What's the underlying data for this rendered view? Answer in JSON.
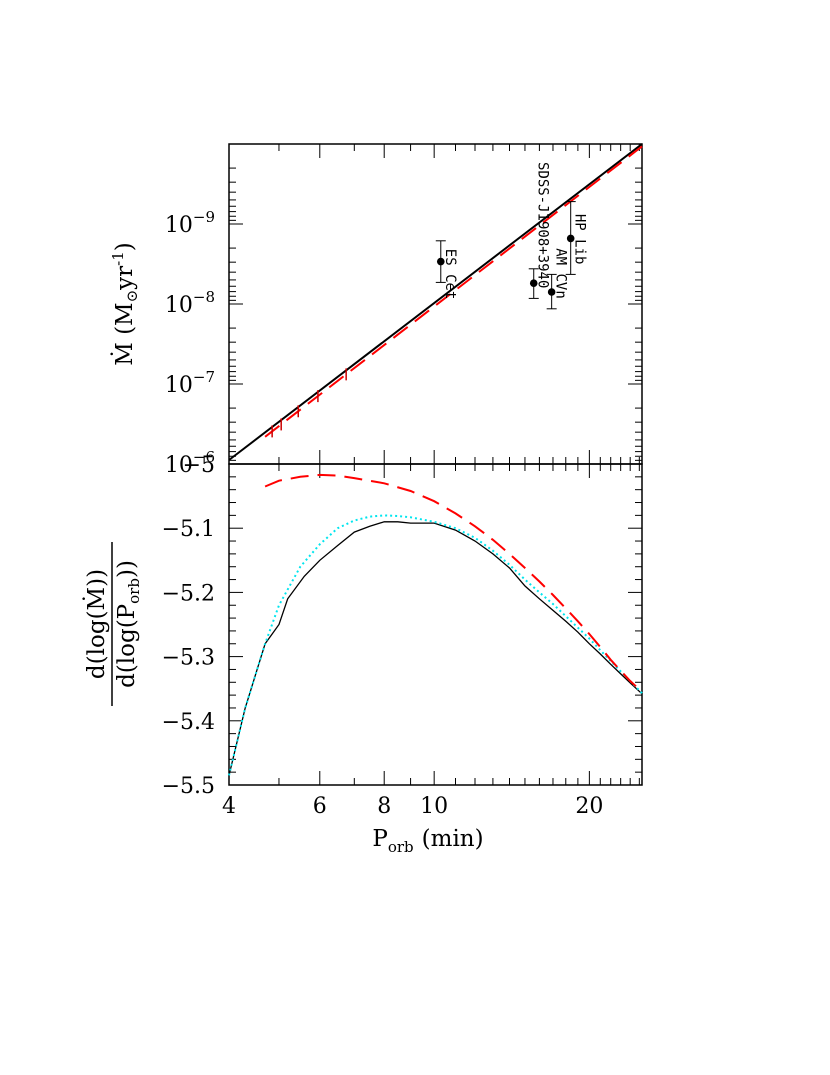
{
  "chart_data": [
    {
      "panel": "top",
      "type": "line",
      "xscale": "log",
      "yscale": "log",
      "xlim": [
        4,
        25.3
      ],
      "ylim_log10": [
        -10.0,
        -6.0
      ],
      "ytick_labels": [
        {
          "base": "10",
          "exp": "−6",
          "log10": -6
        },
        {
          "base": "10",
          "exp": "−7",
          "log10": -7
        },
        {
          "base": "10",
          "exp": "−8",
          "log10": -8
        },
        {
          "base": "10",
          "exp": "−9",
          "log10": -9
        }
      ],
      "ylabel": {
        "main": "Ṁ  (M",
        "sun": "⊙",
        "tail": "yr",
        "exp": "-1",
        "close": ")"
      },
      "series": [
        {
          "name": "model-black",
          "color": "#000000",
          "style": "solid",
          "x": [
            4.0,
            25.3
          ],
          "log10_y": [
            -6.05,
            -10.0
          ]
        },
        {
          "name": "model-red",
          "color": "#ff0000",
          "style": "dashed",
          "x": [
            4.7,
            25.3
          ],
          "log10_y": [
            -6.34,
            -9.97
          ]
        }
      ],
      "tick_marks_on_red": [
        4.85,
        5.05,
        5.45,
        5.95,
        6.75
      ],
      "sources": [
        {
          "name": "ES Cet",
          "x": 10.3,
          "log10_y": -8.53,
          "log10_lo": -8.79,
          "log10_hi": -8.27,
          "label_pos": "below"
        },
        {
          "name": "SDSS-J1908+3940",
          "x": 15.6,
          "log10_y": -8.26,
          "log10_lo": -8.44,
          "log10_hi": -8.07,
          "label_pos": "above"
        },
        {
          "name": "AM CVn",
          "x": 16.9,
          "log10_y": -8.15,
          "log10_lo": -8.37,
          "log10_hi": -7.94,
          "label_pos": "above"
        },
        {
          "name": "HP Lib",
          "x": 18.4,
          "log10_y": -8.82,
          "log10_lo": -9.28,
          "log10_hi": -8.37,
          "label_pos": "above"
        }
      ]
    },
    {
      "panel": "bottom",
      "type": "line",
      "xscale": "log",
      "xlim": [
        4,
        25.3
      ],
      "ylim": [
        -5.5,
        -5.0
      ],
      "yticks": [
        -5.5,
        -5.4,
        -5.3,
        -5.2,
        -5.1,
        -5.0
      ],
      "ytick_labels": [
        "−5.5",
        "−5.4",
        "−5.3",
        "−5.2",
        "−5.1",
        "−5"
      ],
      "xticks_major": [
        4,
        6,
        8,
        10,
        20
      ],
      "xtick_labels": [
        "4",
        "6",
        "8",
        "10",
        "20"
      ],
      "xlabel": {
        "main": "P",
        "sub": "orb",
        "tail": "(min)"
      },
      "ylabel": {
        "num_a": "d(log(",
        "num_dot": "Ṁ",
        "num_b": "))",
        "den_a": "d(log(P",
        "den_sub": "orb",
        "den_b": "))"
      },
      "series": [
        {
          "name": "black",
          "color": "#000000",
          "style": "solid",
          "x": [
            4.0,
            4.3,
            4.7,
            5.0,
            5.2,
            5.6,
            6.0,
            6.5,
            7.0,
            7.5,
            8.0,
            8.5,
            9.0,
            9.5,
            10.0,
            11.0,
            12.0,
            13.0,
            14.0,
            15.0,
            16.0,
            17.0,
            18.0,
            19.0,
            20.0,
            21.0,
            22.0,
            23.0,
            24.0,
            25.3
          ],
          "y": [
            -5.485,
            -5.38,
            -5.28,
            -5.25,
            -5.21,
            -5.175,
            -5.15,
            -5.127,
            -5.106,
            -5.097,
            -5.09,
            -5.09,
            -5.092,
            -5.092,
            -5.092,
            -5.103,
            -5.12,
            -5.14,
            -5.162,
            -5.19,
            -5.21,
            -5.228,
            -5.245,
            -5.262,
            -5.28,
            -5.296,
            -5.312,
            -5.327,
            -5.341,
            -5.358
          ]
        },
        {
          "name": "cyan",
          "color": "#00e5ee",
          "style": "dotted",
          "x": [
            4.0,
            4.3,
            4.7,
            5.0,
            5.5,
            6.0,
            6.5,
            7.0,
            7.5,
            8.0,
            8.5,
            9.0,
            10.0,
            11.0,
            12.0,
            13.0,
            14.0,
            15.0,
            16.0,
            17.0,
            18.0,
            19.0,
            20.0,
            21.0,
            22.0,
            23.0,
            24.0,
            25.3
          ],
          "y": [
            -5.485,
            -5.38,
            -5.28,
            -5.22,
            -5.16,
            -5.125,
            -5.1,
            -5.088,
            -5.082,
            -5.08,
            -5.081,
            -5.083,
            -5.09,
            -5.1,
            -5.115,
            -5.135,
            -5.157,
            -5.18,
            -5.2,
            -5.218,
            -5.237,
            -5.255,
            -5.272,
            -5.29,
            -5.307,
            -5.323,
            -5.338,
            -5.357
          ]
        },
        {
          "name": "red-dashed",
          "color": "#ff0000",
          "style": "dashed",
          "x": [
            4.7,
            5.0,
            5.5,
            6.0,
            6.5,
            7.0,
            8.0,
            9.0,
            10.0,
            11.0,
            12.0,
            13.0,
            14.0,
            15.0,
            16.0,
            17.0,
            18.0,
            19.0,
            20.0,
            21.0,
            22.0,
            23.0,
            24.0,
            25.3
          ],
          "y": [
            -5.035,
            -5.026,
            -5.02,
            -5.017,
            -5.018,
            -5.022,
            -5.03,
            -5.042,
            -5.058,
            -5.077,
            -5.097,
            -5.118,
            -5.14,
            -5.162,
            -5.183,
            -5.204,
            -5.225,
            -5.245,
            -5.265,
            -5.285,
            -5.305,
            -5.322,
            -5.338,
            -5.355
          ]
        }
      ]
    }
  ]
}
